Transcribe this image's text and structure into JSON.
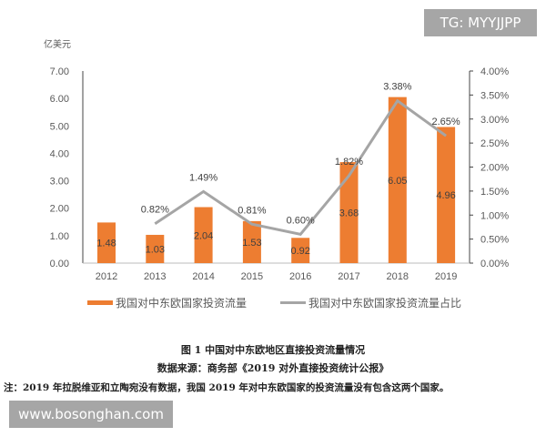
{
  "chart_data": {
    "type": "bar+line",
    "categories": [
      "2012",
      "2013",
      "2014",
      "2015",
      "2016",
      "2017",
      "2018",
      "2019"
    ],
    "ylabel": "亿美元",
    "ylim": [
      0,
      7
    ],
    "yticks": [
      "0.00",
      "1.00",
      "2.00",
      "3.00",
      "4.00",
      "5.00",
      "6.00",
      "7.00"
    ],
    "y2lim": [
      0,
      4
    ],
    "y2ticks": [
      "0.00%",
      "0.50%",
      "1.00%",
      "1.50%",
      "2.00%",
      "2.50%",
      "3.00%",
      "3.50%",
      "4.00%"
    ],
    "series": [
      {
        "name": "我国对中东欧国家投资流量",
        "type": "bar",
        "axis": "left",
        "color": "#ed7d31",
        "values": [
          1.48,
          1.03,
          2.04,
          1.53,
          0.92,
          3.68,
          6.05,
          4.96
        ],
        "labels": [
          "1.48",
          "1.03",
          "2.04",
          "1.53",
          "0.92",
          "3.68",
          "6.05",
          "4.96"
        ]
      },
      {
        "name": "我国对中东欧国家投资流量占比",
        "type": "line",
        "axis": "right",
        "color": "#a5a5a5",
        "values": [
          null,
          0.82,
          1.49,
          0.81,
          0.6,
          1.82,
          3.38,
          2.65
        ],
        "labels": [
          "",
          "0.82%",
          "1.49%",
          "0.81%",
          "0.60%",
          "1.82%",
          "3.38%",
          "2.65%"
        ]
      }
    ],
    "legend": "bottom",
    "grid": false
  },
  "caption": {
    "title": "图 1  中国对中东欧地区直接投资流量情况",
    "source": "数据来源：商务部《2019 对外直接投资统计公报》",
    "note": "注：2019 年拉脱维亚和立陶宛没有数据，我国 2019 年对中东欧国家的投资流量没有包含这两个国家。"
  },
  "watermarks": {
    "top": "TG: MYYJJPP",
    "bottom": "www.bosonghan.com"
  }
}
